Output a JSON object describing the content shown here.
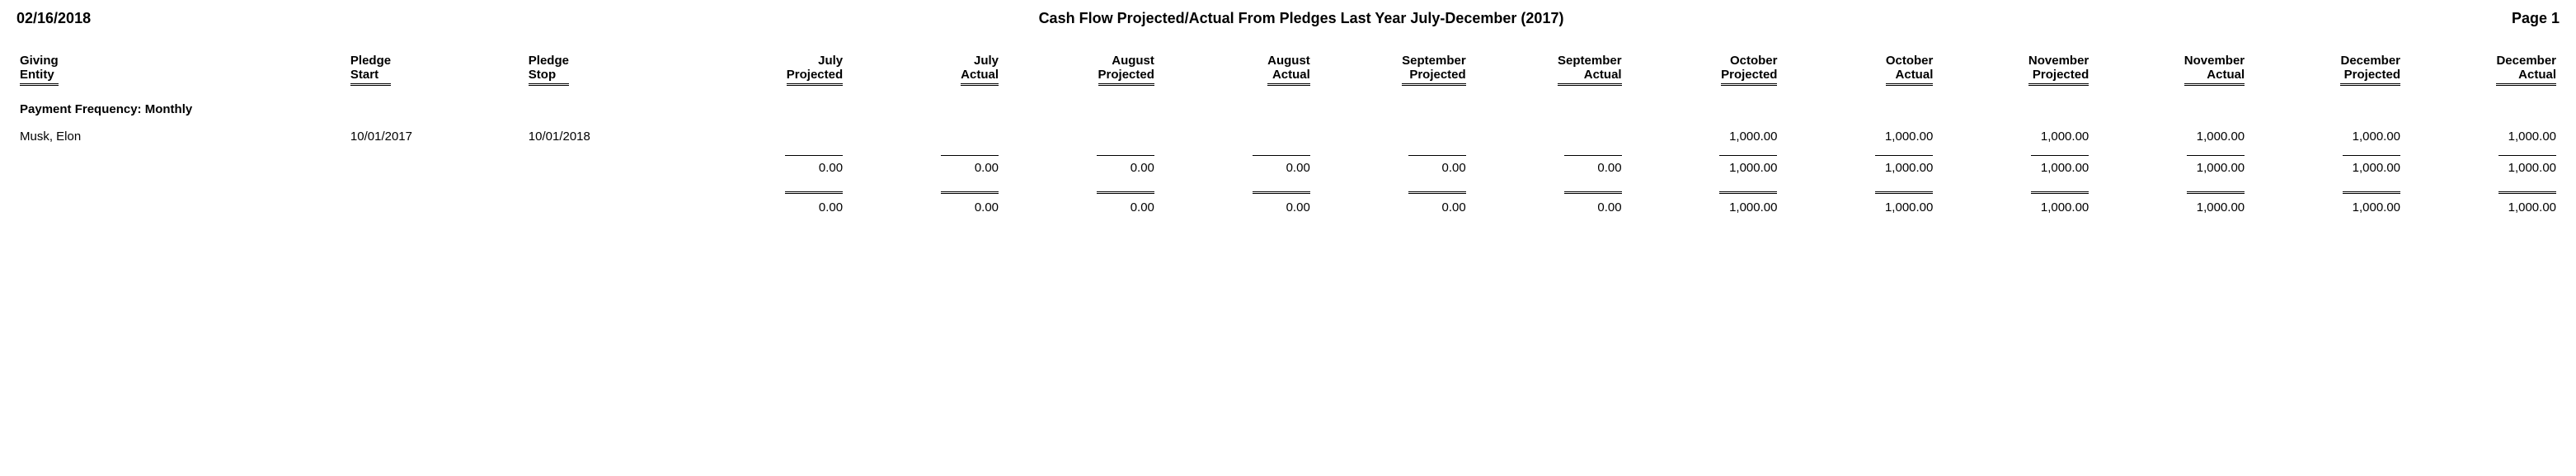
{
  "header": {
    "date": "02/16/2018",
    "title": "Cash Flow Projected/Actual From Pledges Last Year July-December (2017)",
    "page": "Page 1"
  },
  "columns": {
    "entity": "Giving\nEntity",
    "start": "Pledge\nStart",
    "stop": "Pledge\nStop",
    "jul_p": "July\nProjected",
    "jul_a": "July\nActual",
    "aug_p": "August\nProjected",
    "aug_a": "August\nActual",
    "sep_p": "September\nProjected",
    "sep_a": "September\nActual",
    "oct_p": "October\nProjected",
    "oct_a": "October\nActual",
    "nov_p": "November\nProjected",
    "nov_a": "November\nActual",
    "dec_p": "December\nProjected",
    "dec_a": "December\nActual"
  },
  "section": {
    "label": "Payment Frequency: Monthly"
  },
  "row": {
    "entity": "Musk, Elon",
    "start": "10/01/2017",
    "stop": "10/01/2018",
    "jul_p": "",
    "jul_a": "",
    "aug_p": "",
    "aug_a": "",
    "sep_p": "",
    "sep_a": "",
    "oct_p": "1,000.00",
    "oct_a": "1,000.00",
    "nov_p": "1,000.00",
    "nov_a": "1,000.00",
    "dec_p": "1,000.00",
    "dec_a": "1,000.00"
  },
  "subtotal": {
    "jul_p": "0.00",
    "jul_a": "0.00",
    "aug_p": "0.00",
    "aug_a": "0.00",
    "sep_p": "0.00",
    "sep_a": "0.00",
    "oct_p": "1,000.00",
    "oct_a": "1,000.00",
    "nov_p": "1,000.00",
    "nov_a": "1,000.00",
    "dec_p": "1,000.00",
    "dec_a": "1,000.00"
  },
  "grand": {
    "jul_p": "0.00",
    "jul_a": "0.00",
    "aug_p": "0.00",
    "aug_a": "0.00",
    "sep_p": "0.00",
    "sep_a": "0.00",
    "oct_p": "1,000.00",
    "oct_a": "1,000.00",
    "nov_p": "1,000.00",
    "nov_a": "1,000.00",
    "dec_p": "1,000.00",
    "dec_a": "1,000.00"
  },
  "style": {
    "background_color": "#ffffff",
    "text_color": "#000000",
    "font_family": "Arial",
    "header_fontsize_pt": 14,
    "body_fontsize_pt": 11,
    "header_rule_style": "double",
    "subtotal_rule_style": "single-top",
    "grand_rule_style": "double-top"
  }
}
